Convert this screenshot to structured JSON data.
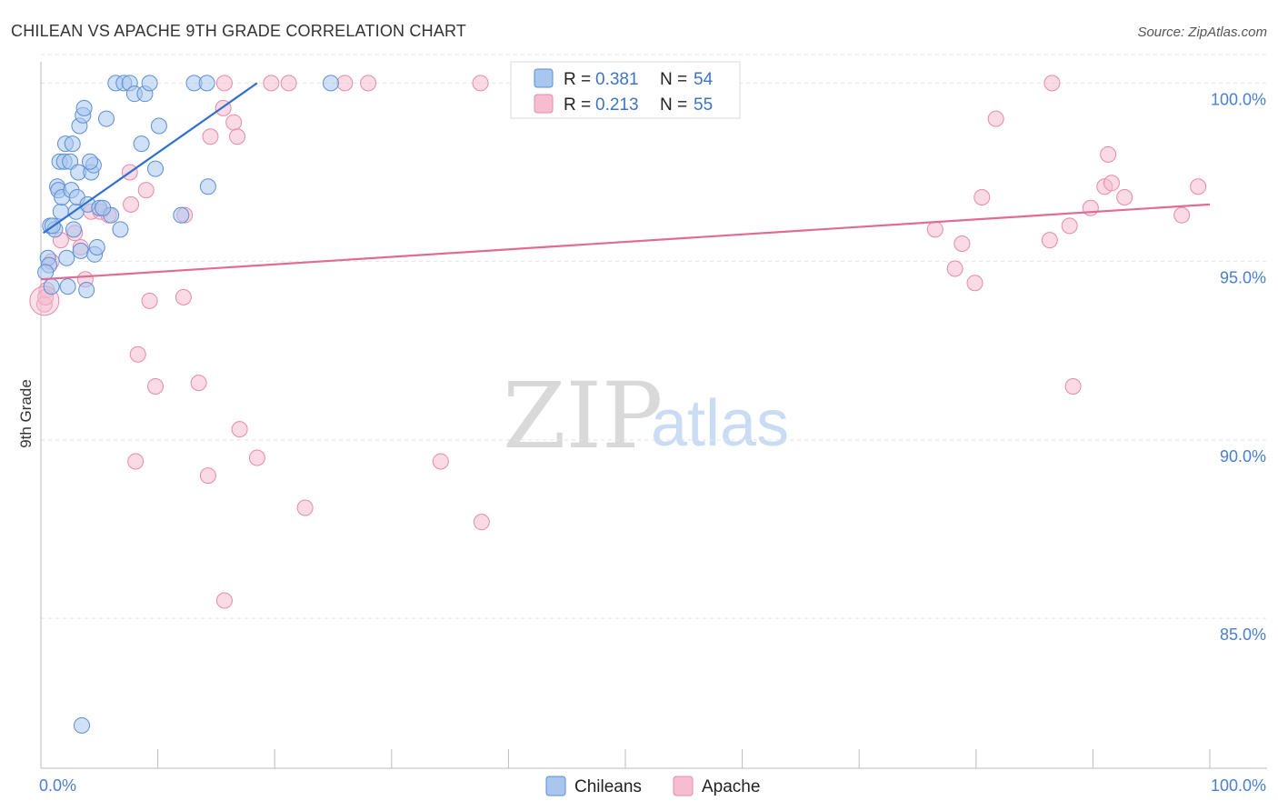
{
  "header": {
    "title": "CHILEAN VS APACHE 9TH GRADE CORRELATION CHART",
    "source": "Source: ZipAtlas.com"
  },
  "watermark": {
    "zip": "ZIP",
    "atlas": "atlas"
  },
  "legend": {
    "chileans": {
      "r_label": "R = ",
      "r_value": "0.381",
      "n_label": "N = ",
      "n_value": "54"
    },
    "apache": {
      "r_label": "R = ",
      "r_value": "0.213",
      "n_label": "N = ",
      "n_value": "55"
    }
  },
  "bottom_legend": {
    "chileans": "Chileans",
    "apache": "Apache"
  },
  "colors": {
    "chileans_fill": "#a9c6ef",
    "chileans_stroke": "#5b8fd6",
    "chileans_line": "#2f6fd0",
    "apache_fill": "#f6bcd0",
    "apache_stroke": "#e68aab",
    "apache_line": "#e06c95",
    "grid": "#e3e3e3",
    "axis": "#bbbbbb"
  },
  "chart_data": {
    "type": "scatter",
    "title": "CHILEAN VS APACHE 9TH GRADE CORRELATION CHART",
    "xlabel": "",
    "ylabel": "9th Grade",
    "xlim": [
      0,
      100
    ],
    "ylim": [
      80.8,
      100.8
    ],
    "x_tick_labels": [
      "0.0%",
      "100.0%"
    ],
    "y_ticks": [
      85,
      90,
      95,
      100
    ],
    "y_tick_labels": [
      "85.0%",
      "90.0%",
      "95.0%",
      "100.0%"
    ],
    "grid": true,
    "legend_position": "top-center",
    "series": [
      {
        "name": "Chileans",
        "r": 0.381,
        "n": 54,
        "trend": [
          [
            0.2,
            95.8
          ],
          [
            18.5,
            100.0
          ]
        ],
        "points": [
          [
            0.6,
            95.1
          ],
          [
            0.7,
            94.9
          ],
          [
            0.8,
            96.0
          ],
          [
            0.9,
            94.3
          ],
          [
            1.2,
            95.9
          ],
          [
            1.4,
            97.1
          ],
          [
            1.5,
            97.0
          ],
          [
            1.6,
            97.8
          ],
          [
            1.7,
            96.4
          ],
          [
            1.8,
            96.8
          ],
          [
            2.0,
            97.8
          ],
          [
            2.1,
            98.3
          ],
          [
            2.2,
            95.1
          ],
          [
            2.3,
            94.3
          ],
          [
            2.5,
            97.8
          ],
          [
            2.6,
            97.0
          ],
          [
            2.7,
            98.3
          ],
          [
            2.8,
            95.9
          ],
          [
            3.0,
            96.4
          ],
          [
            3.1,
            96.8
          ],
          [
            3.2,
            97.5
          ],
          [
            3.3,
            98.8
          ],
          [
            3.4,
            95.3
          ],
          [
            3.6,
            99.1
          ],
          [
            3.7,
            99.3
          ],
          [
            3.9,
            94.2
          ],
          [
            4.0,
            96.6
          ],
          [
            4.3,
            97.5
          ],
          [
            4.5,
            97.7
          ],
          [
            4.6,
            95.2
          ],
          [
            4.8,
            95.4
          ],
          [
            5.0,
            96.5
          ],
          [
            5.6,
            99.0
          ],
          [
            6.0,
            96.3
          ],
          [
            6.4,
            100.0
          ],
          [
            6.8,
            95.9
          ],
          [
            7.1,
            100.0
          ],
          [
            7.6,
            100.0
          ],
          [
            8.0,
            99.7
          ],
          [
            8.6,
            98.3
          ],
          [
            8.9,
            99.7
          ],
          [
            9.3,
            100.0
          ],
          [
            9.8,
            97.6
          ],
          [
            10.1,
            98.8
          ],
          [
            12.0,
            96.3
          ],
          [
            13.1,
            100.0
          ],
          [
            14.2,
            100.0
          ],
          [
            14.3,
            97.1
          ],
          [
            24.8,
            100.0
          ],
          [
            3.5,
            82.0
          ],
          [
            0.4,
            94.7
          ],
          [
            1.0,
            96.0
          ],
          [
            4.2,
            97.8
          ],
          [
            5.3,
            96.5
          ]
        ]
      },
      {
        "name": "Apache",
        "r": 0.213,
        "n": 55,
        "trend": [
          [
            0.0,
            94.5
          ],
          [
            100.0,
            96.6
          ]
        ],
        "points": [
          [
            0.3,
            93.8
          ],
          [
            0.5,
            94.2
          ],
          [
            0.9,
            95.0
          ],
          [
            1.7,
            95.6
          ],
          [
            2.9,
            95.8
          ],
          [
            3.4,
            95.4
          ],
          [
            3.8,
            94.5
          ],
          [
            4.3,
            96.4
          ],
          [
            5.1,
            96.4
          ],
          [
            5.8,
            96.3
          ],
          [
            7.6,
            97.5
          ],
          [
            7.7,
            96.6
          ],
          [
            8.1,
            89.4
          ],
          [
            8.3,
            92.4
          ],
          [
            9.0,
            97.0
          ],
          [
            9.3,
            93.9
          ],
          [
            9.8,
            91.5
          ],
          [
            12.2,
            94.0
          ],
          [
            12.3,
            96.3
          ],
          [
            13.5,
            91.6
          ],
          [
            14.5,
            98.5
          ],
          [
            14.3,
            89.0
          ],
          [
            15.6,
            99.3
          ],
          [
            15.7,
            85.5
          ],
          [
            16.5,
            98.9
          ],
          [
            16.8,
            98.5
          ],
          [
            17.0,
            90.3
          ],
          [
            18.5,
            89.5
          ],
          [
            19.7,
            100.0
          ],
          [
            21.2,
            100.0
          ],
          [
            22.6,
            88.1
          ],
          [
            26.0,
            100.0
          ],
          [
            28.0,
            100.0
          ],
          [
            34.2,
            89.4
          ],
          [
            37.6,
            100.0
          ],
          [
            37.7,
            87.7
          ],
          [
            15.7,
            100.0
          ],
          [
            76.5,
            95.9
          ],
          [
            78.2,
            94.8
          ],
          [
            78.8,
            95.5
          ],
          [
            79.9,
            94.4
          ],
          [
            80.5,
            96.8
          ],
          [
            81.7,
            99.0
          ],
          [
            86.3,
            95.6
          ],
          [
            86.5,
            100.0
          ],
          [
            88.0,
            96.0
          ],
          [
            88.3,
            91.5
          ],
          [
            89.8,
            96.5
          ],
          [
            91.0,
            97.1
          ],
          [
            91.3,
            98.0
          ],
          [
            91.6,
            97.2
          ],
          [
            92.7,
            96.8
          ],
          [
            97.6,
            96.3
          ],
          [
            99.0,
            97.1
          ],
          [
            0.4,
            94.0
          ]
        ]
      }
    ]
  }
}
